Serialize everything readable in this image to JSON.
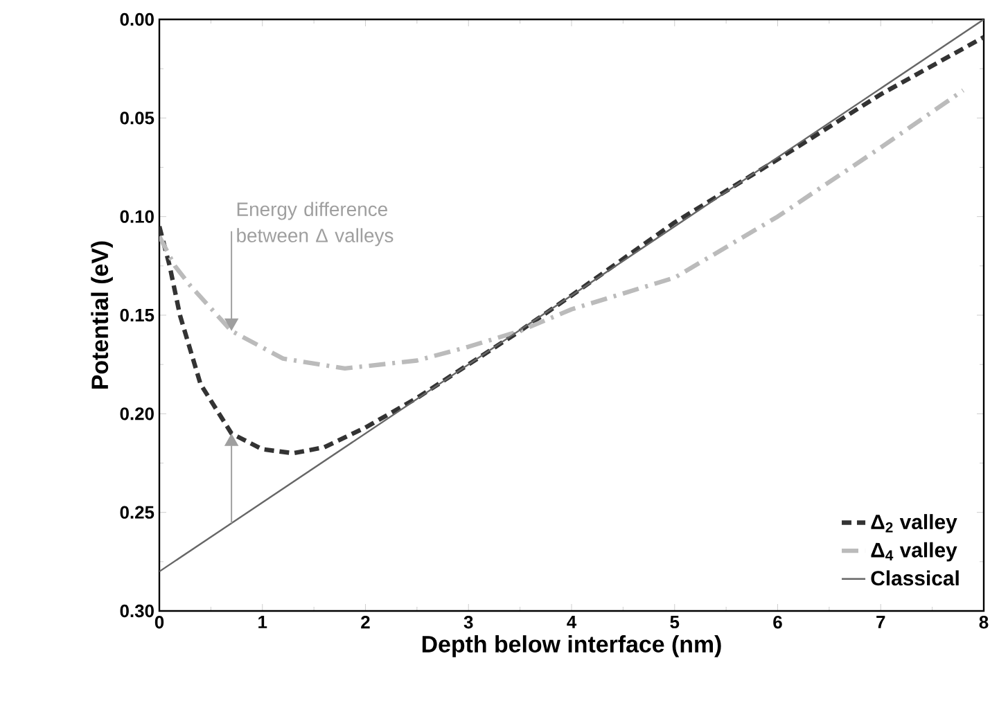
{
  "chart_data": {
    "type": "line",
    "xlabel": "Depth below interface (nm)",
    "ylabel": "Potential (eV)",
    "xlim": [
      0,
      8
    ],
    "ylim": [
      0.3,
      0
    ],
    "xticks": [
      0,
      1,
      2,
      3,
      4,
      5,
      6,
      7,
      8
    ],
    "yticks": [
      {
        "value": 0,
        "label": "0.00"
      },
      {
        "value": 0.05,
        "label": "0.05"
      },
      {
        "value": 0.1,
        "label": "0.10"
      },
      {
        "value": 0.15,
        "label": "0.15"
      },
      {
        "value": 0.2,
        "label": "0.20"
      },
      {
        "value": 0.25,
        "label": "0.25"
      },
      {
        "value": 0.3,
        "label": "0.30"
      }
    ],
    "legend": "bottom right",
    "grid": false,
    "annotations": [
      {
        "text": "Energy difference between Δ valleys",
        "x": 0.7,
        "y": 0.158
      }
    ],
    "series": [
      {
        "name": "Δ$_{2}$ valley",
        "color": "#333333",
        "line_style": "dashed",
        "x": [
          0,
          0.1,
          0.2,
          0.4,
          0.7,
          1.0,
          1.3,
          1.6,
          2,
          2.5,
          3,
          3.5,
          4,
          5,
          6,
          7,
          8
        ],
        "values": [
          0.105,
          0.125,
          0.15,
          0.185,
          0.21,
          0.218,
          0.22,
          0.217,
          0.207,
          0.192,
          0.175,
          0.158,
          0.14,
          0.103,
          0.071,
          0.038,
          0.009
        ]
      },
      {
        "name": "Δ$_{4}$ valley",
        "color": "#bbbbbb",
        "line_style": "dashdot",
        "x": [
          0,
          0.15,
          0.3,
          0.7,
          1.2,
          1.8,
          2.5,
          3,
          3.5,
          4,
          5,
          6,
          7,
          7.8
        ],
        "values": [
          0.11,
          0.125,
          0.135,
          0.158,
          0.172,
          0.177,
          0.173,
          0.166,
          0.158,
          0.147,
          0.131,
          0.1,
          0.065,
          0.036
        ]
      },
      {
        "name": "Classical",
        "color": "#666666",
        "line_style": "solid",
        "x": [
          0,
          8
        ],
        "values": [
          0.28,
          0
        ]
      }
    ]
  }
}
